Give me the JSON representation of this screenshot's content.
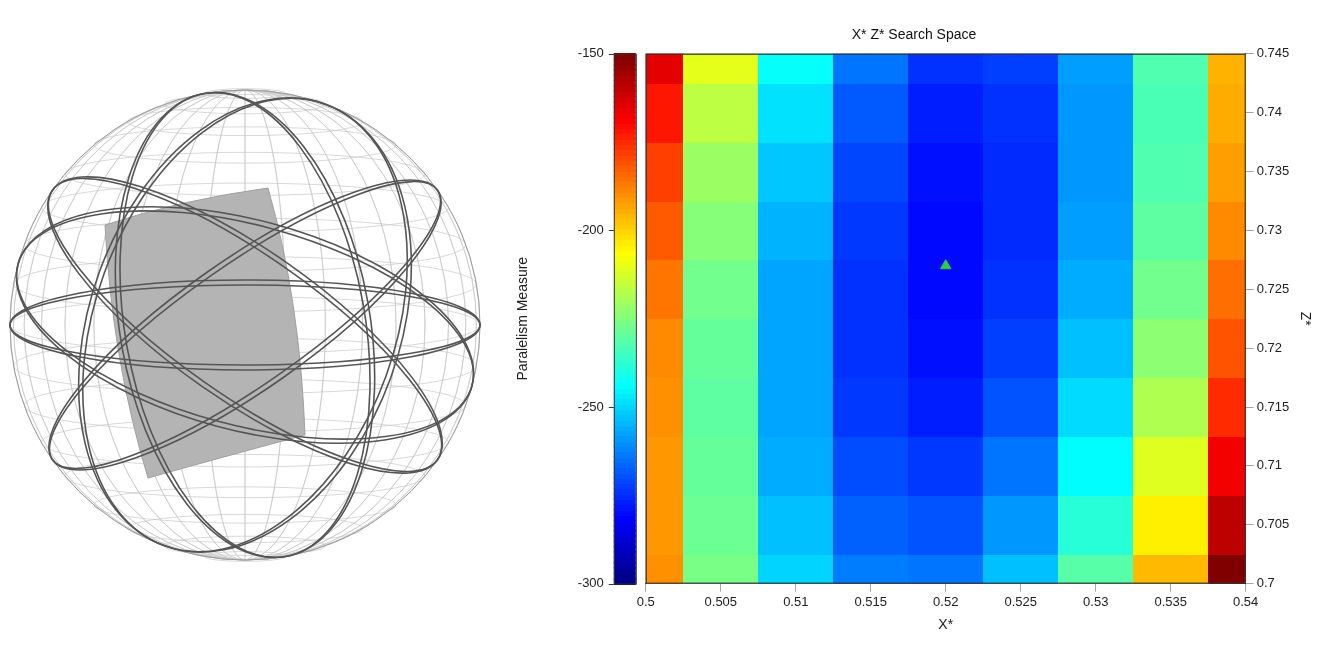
{
  "chart_data": {
    "type": "heatmap",
    "title": "X* Z* Search Space",
    "x_label": "X*",
    "y_label": "Z*",
    "x": [
      0.5,
      0.505,
      0.51,
      0.515,
      0.52,
      0.525,
      0.53,
      0.535,
      0.54
    ],
    "y": [
      0.7,
      0.705,
      0.71,
      0.715,
      0.72,
      0.725,
      0.73,
      0.735,
      0.74,
      0.745
    ],
    "values": [
      [
        -190,
        -226,
        -250,
        -263,
        -264,
        -253,
        -231,
        -196,
        -150
      ],
      [
        -191,
        -228,
        -253,
        -267,
        -269,
        -259,
        -238,
        -204,
        -159
      ],
      [
        -191,
        -229,
        -256,
        -270,
        -273,
        -264,
        -244,
        -211,
        -167
      ],
      [
        -190,
        -230,
        -257,
        -273,
        -277,
        -269,
        -249,
        -218,
        -175
      ],
      [
        -189,
        -229,
        -257,
        -274,
        -279,
        -272,
        -253,
        -223,
        -181
      ],
      [
        -186,
        -227,
        -257,
        -274,
        -280,
        -274,
        -256,
        -227,
        -185
      ],
      [
        -182,
        -224,
        -255,
        -273,
        -280,
        -275,
        -258,
        -230,
        -189
      ],
      [
        -178,
        -221,
        -252,
        -271,
        -279,
        -275,
        -259,
        -232,
        -192
      ],
      [
        -172,
        -216,
        -248,
        -268,
        -277,
        -274,
        -259,
        -233,
        -194
      ],
      [
        -165,
        -210,
        -243,
        -264,
        -274,
        -272,
        -258,
        -232,
        -195
      ]
    ],
    "xlim": [
      0.5,
      0.54
    ],
    "xticks": [
      0.5,
      0.505,
      0.51,
      0.515,
      0.52,
      0.525,
      0.53,
      0.535,
      0.54
    ],
    "ylim": [
      0.7,
      0.745
    ],
    "yticks": [
      0.7,
      0.705,
      0.71,
      0.715,
      0.72,
      0.725,
      0.73,
      0.735,
      0.74,
      0.745
    ],
    "color": "jet",
    "grid": true,
    "colorbar": {
      "label": "Paralelism Measure",
      "range": [
        -300,
        -150
      ],
      "ticks": [
        -300,
        -250,
        -200,
        -150
      ]
    },
    "optimum": {
      "x": 0.52,
      "y": 0.727,
      "color": "#2ecc40",
      "marker": "triangle"
    }
  }
}
